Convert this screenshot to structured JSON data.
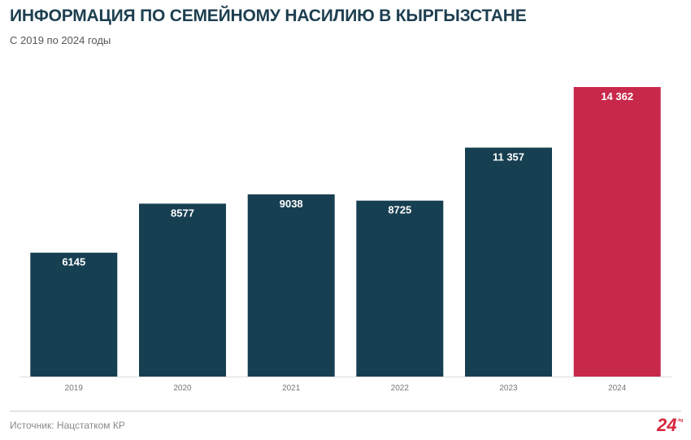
{
  "header": {
    "title": "ИНФОРМАЦИЯ ПО СЕМЕЙНОМУ НАСИЛИЮ В КЫРГЫЗСТАНЕ",
    "subtitle": "С 2019 по 2024 годы"
  },
  "footer": {
    "source": "Источник: Нацстатком КР",
    "logo_text": "24.kg"
  },
  "colors": {
    "bar": "#173f52",
    "highlight": "#c8284a"
  },
  "chart_data": {
    "type": "bar",
    "title": "ИНФОРМАЦИЯ ПО СЕМЕЙНОМУ НАСИЛИЮ В КЫРГЫЗСТАНЕ",
    "subtitle": "С 2019 по 2024 годы",
    "categories": [
      "2019",
      "2020",
      "2021",
      "2022",
      "2023",
      "2024"
    ],
    "values": [
      6145,
      8577,
      9038,
      8725,
      11357,
      14362
    ],
    "value_labels": [
      "6145",
      "8577",
      "9038",
      "8725",
      "11 357",
      "14 362"
    ],
    "highlight_category": "2024",
    "xlabel": "",
    "ylabel": "",
    "ylim": [
      0,
      14362
    ],
    "grid": false,
    "legend": "none"
  }
}
